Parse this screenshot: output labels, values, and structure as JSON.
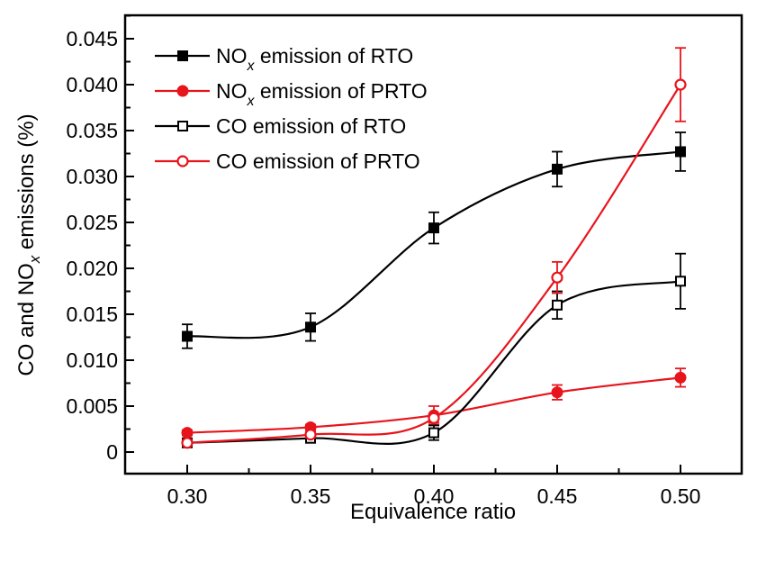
{
  "chart_data": {
    "type": "line",
    "title": "",
    "xlabel": "Equivalence ratio",
    "ylabel": {
      "prefix": "CO and NO",
      "subscript": "x",
      "suffix": " emissions (%)"
    },
    "x": [
      0.3,
      0.35,
      0.4,
      0.45,
      0.5
    ],
    "xlim": [
      0.275,
      0.525
    ],
    "ylim": [
      -0.0025,
      0.0475
    ],
    "xticks": [
      0.3,
      0.35,
      0.4,
      0.45,
      0.5
    ],
    "xtick_labels": [
      "0.30",
      "0.35",
      "0.40",
      "0.45",
      "0.50"
    ],
    "yticks": [
      0,
      0.005,
      0.01,
      0.015,
      0.02,
      0.025,
      0.03,
      0.035,
      0.04,
      0.045
    ],
    "ytick_labels": [
      "0",
      "0.005",
      "0.010",
      "0.015",
      "0.020",
      "0.025",
      "0.030",
      "0.035",
      "0.040",
      "0.045"
    ],
    "grid": false,
    "legend_position": "top-left",
    "series": [
      {
        "name": "NOx emission of RTO",
        "legend": {
          "prefix": "NO",
          "subscript": "x",
          "suffix": " emission of RTO"
        },
        "color": "#000000",
        "marker": "square-filled",
        "values": [
          0.0126,
          0.0136,
          0.0244,
          0.0308,
          0.0327
        ],
        "errors": [
          0.0013,
          0.0015,
          0.0017,
          0.0019,
          0.0021
        ]
      },
      {
        "name": "NOx emission of PRTO",
        "legend": {
          "prefix": "NO",
          "subscript": "x",
          "suffix": " emission of PRTO"
        },
        "color": "#e8141c",
        "marker": "circle-filled",
        "values": [
          0.0021,
          0.0027,
          0.004,
          0.0065,
          0.0081
        ],
        "errors": [
          0.0003,
          0.0003,
          0.001,
          0.0008,
          0.001
        ]
      },
      {
        "name": "CO emission of RTO",
        "legend": {
          "prefix": "CO emission of RTO",
          "subscript": "",
          "suffix": ""
        },
        "color": "#000000",
        "marker": "square-open",
        "values": [
          0.001,
          0.0015,
          0.0021,
          0.016,
          0.0186
        ],
        "errors": [
          0.0002,
          0.0003,
          0.0008,
          0.0015,
          0.003
        ]
      },
      {
        "name": "CO emission of PRTO",
        "legend": {
          "prefix": "CO emission of PRTO",
          "subscript": "",
          "suffix": ""
        },
        "color": "#e8141c",
        "marker": "circle-open",
        "values": [
          0.001,
          0.0019,
          0.0037,
          0.019,
          0.04
        ],
        "errors": [
          0.0002,
          0.0003,
          0.0005,
          0.0017,
          0.004
        ]
      }
    ]
  }
}
